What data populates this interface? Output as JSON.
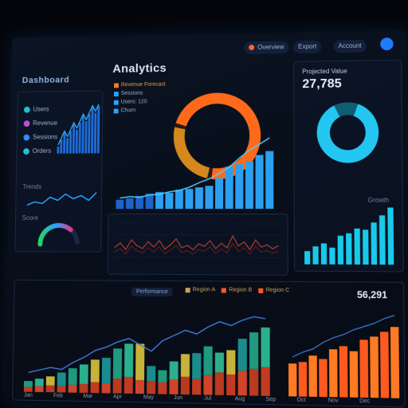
{
  "header": {
    "title": "Analytics",
    "brand": "Dashboard",
    "btn1_label": "Overview",
    "btn2_label": "Export",
    "btn3_label": "Account"
  },
  "left_panel": {
    "kpis": [
      "Users",
      "Revenue",
      "Sessions",
      "Orders"
    ],
    "kpi_colors": [
      "#21c2d8",
      "#c44fd6",
      "#2f8cff",
      "#21c2d8"
    ],
    "section_label": "Trends",
    "gauge_label": "Score",
    "gauge_value": 0.72
  },
  "main_legend": {
    "items": [
      {
        "label": "Revenue Forecast",
        "color": "#ff7a1a"
      },
      {
        "label": "Sessions",
        "color": "#2aa3ff"
      },
      {
        "label": "Users: 120",
        "color": "#2aa3ff"
      },
      {
        "label": "Churn",
        "color": "#2aa3ff"
      }
    ]
  },
  "donut_main": {
    "orange_fraction": 0.72
  },
  "right_panel": {
    "label": "Projected Value",
    "value": "27,785",
    "donut_fraction": 0.88,
    "bar_label": "Growth"
  },
  "bottom_panel": {
    "tab_label": "Performance",
    "legend": [
      "Region A",
      "Region B",
      "Region C"
    ],
    "total": "56,291",
    "x_labels": [
      "Jan",
      "Feb",
      "Mar",
      "Apr",
      "May",
      "Jun",
      "Jul",
      "Aug",
      "Sep",
      "Oct",
      "Nov",
      "Dec"
    ]
  },
  "chart_data": [
    {
      "type": "bar",
      "name": "main-bars",
      "values": [
        12,
        14,
        17,
        20,
        22,
        21,
        25,
        26,
        28,
        30,
        40,
        55,
        58,
        62,
        70,
        75
      ],
      "line": [
        10,
        12,
        11,
        14,
        15,
        18,
        20,
        24,
        30,
        35,
        42,
        50,
        62,
        72,
        80,
        88
      ],
      "ylim": [
        0,
        100
      ]
    },
    {
      "type": "line",
      "name": "noise-line",
      "values": [
        40,
        52,
        35,
        60,
        45,
        38,
        55,
        42,
        58,
        36,
        48,
        62,
        40,
        46,
        35,
        50,
        44,
        58,
        38,
        52,
        40,
        70,
        45,
        55,
        36,
        60,
        42,
        48,
        38,
        46
      ],
      "ylim": [
        0,
        100
      ]
    },
    {
      "type": "bar",
      "name": "right-bars",
      "values": [
        22,
        30,
        35,
        28,
        48,
        52,
        60,
        58,
        70,
        82,
        95
      ],
      "ylim": [
        0,
        100
      ]
    },
    {
      "type": "bar",
      "name": "bottom-stacked",
      "series": [
        {
          "name": "a",
          "values": [
            10,
            12,
            14,
            13,
            16,
            18,
            22,
            20,
            30,
            34,
            28,
            26,
            24,
            30,
            36,
            32,
            40,
            46,
            42,
            50,
            54,
            58
          ]
        },
        {
          "name": "b",
          "values": [
            8,
            10,
            12,
            18,
            22,
            26,
            30,
            34,
            40,
            44,
            48,
            20,
            16,
            24,
            30,
            34,
            38,
            26,
            32,
            42,
            48,
            52
          ]
        }
      ],
      "line": [
        22,
        25,
        28,
        26,
        34,
        40,
        48,
        52,
        58,
        62,
        55,
        48,
        60,
        66,
        72,
        68,
        76,
        82,
        78,
        84,
        88,
        86
      ],
      "ylim": [
        0,
        100
      ]
    },
    {
      "type": "bar",
      "name": "bottom-orange",
      "values": [
        40,
        42,
        50,
        46,
        58,
        62,
        56,
        70,
        74,
        80,
        86
      ],
      "line": [
        42,
        48,
        52,
        60,
        66,
        70,
        76,
        80,
        84,
        90,
        94
      ],
      "ylim": [
        0,
        100
      ]
    }
  ]
}
